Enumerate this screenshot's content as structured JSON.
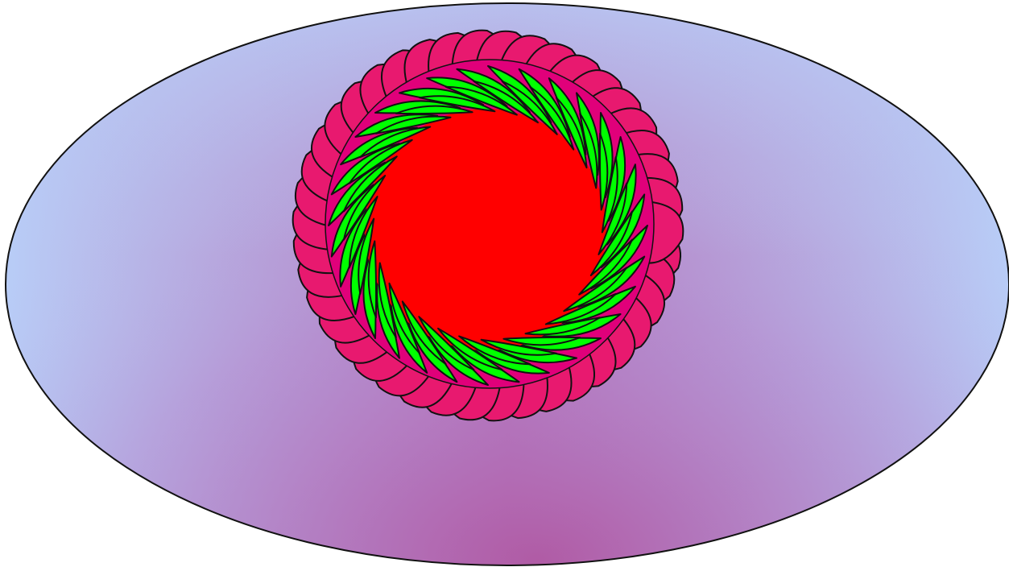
{
  "colors": {
    "background": "#ffffff",
    "ellipse_edge": "#b8cdf7",
    "ellipse_mid": "#b897d8",
    "ellipse_center": "#b160a8",
    "outline": "#111111",
    "magenta": "#e0007a",
    "green": "#00ff00",
    "red": "#ff0000",
    "lace_fill": "#e8196f"
  },
  "icons": [
    "ellipse-background",
    "magenta-disc",
    "lace-ring",
    "green-swirl-ring",
    "red-core"
  ],
  "counts": {
    "green_petals": 32,
    "lace_loops": 42
  }
}
